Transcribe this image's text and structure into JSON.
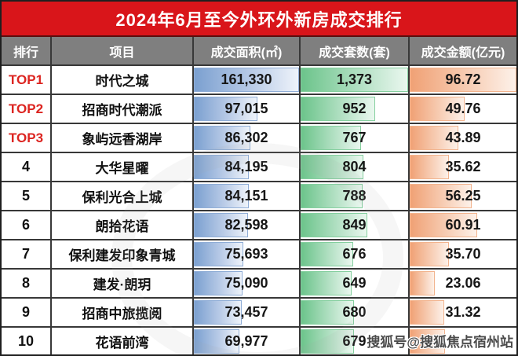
{
  "title": "2024年6月至今外环外新房成交排行",
  "watermark": "搜狐号@搜狐焦点宿州站",
  "columns": [
    "排行",
    "项目",
    "成交面积(㎡)",
    "成交套数(套)",
    "成交金额(亿元)"
  ],
  "colors": {
    "title_bg": "#d9151a",
    "header_bg": "#7f7f7f",
    "top_rank_text": "#dc2420",
    "area_bar": "#7ba0d0",
    "units_bar": "#6cc48b",
    "amount_bar": "#f0a175",
    "grid_line": "#383838"
  },
  "chart_data": {
    "type": "table",
    "title": "2024年6月至今外环外新房成交排行",
    "columns": [
      "排行",
      "项目",
      "成交面积(㎡)",
      "成交套数(套)",
      "成交金额(亿元)"
    ],
    "bar_maxima": {
      "area": 161330,
      "units": 1373,
      "amount": 96.72
    },
    "rows": [
      {
        "rank": "TOP1",
        "top": true,
        "name": "时代之城",
        "area": "161,330",
        "units": "1,373",
        "amount": "96.72",
        "bars": [
          1.0,
          1.0,
          1.0
        ]
      },
      {
        "rank": "TOP2",
        "top": true,
        "name": "招商时代潮派",
        "area": "97,015",
        "units": "952",
        "amount": "49.76",
        "bars": [
          0.601,
          0.693,
          0.514
        ]
      },
      {
        "rank": "TOP3",
        "top": true,
        "name": "象屿远香湖岸",
        "area": "86,302",
        "units": "767",
        "amount": "43.89",
        "bars": [
          0.535,
          0.559,
          0.454
        ]
      },
      {
        "rank": "4",
        "top": false,
        "name": "大华星曜",
        "area": "84,195",
        "units": "804",
        "amount": "35.62",
        "bars": [
          0.522,
          0.586,
          0.368
        ]
      },
      {
        "rank": "5",
        "top": false,
        "name": "保利光合上城",
        "area": "84,151",
        "units": "788",
        "amount": "56.25",
        "bars": [
          0.522,
          0.574,
          0.582
        ]
      },
      {
        "rank": "6",
        "top": false,
        "name": "朗拾花语",
        "area": "82,598",
        "units": "849",
        "amount": "60.91",
        "bars": [
          0.512,
          0.618,
          0.63
        ]
      },
      {
        "rank": "7",
        "top": false,
        "name": "保利建发印象青城",
        "area": "75,693",
        "units": "676",
        "amount": "35.70",
        "bars": [
          0.469,
          0.492,
          0.369
        ]
      },
      {
        "rank": "8",
        "top": false,
        "name": "建发·朗玥",
        "area": "75,090",
        "units": "649",
        "amount": "23.06",
        "bars": [
          0.465,
          0.473,
          0.238
        ]
      },
      {
        "rank": "9",
        "top": false,
        "name": "招商中旅揽阅",
        "area": "73,457",
        "units": "680",
        "amount": "31.32",
        "bars": [
          0.455,
          0.495,
          0.324
        ]
      },
      {
        "rank": "10",
        "top": false,
        "name": "花语前湾",
        "area": "69,977",
        "units": "679",
        "amount": "",
        "bars": [
          0.434,
          0.495,
          0.33
        ]
      }
    ]
  }
}
